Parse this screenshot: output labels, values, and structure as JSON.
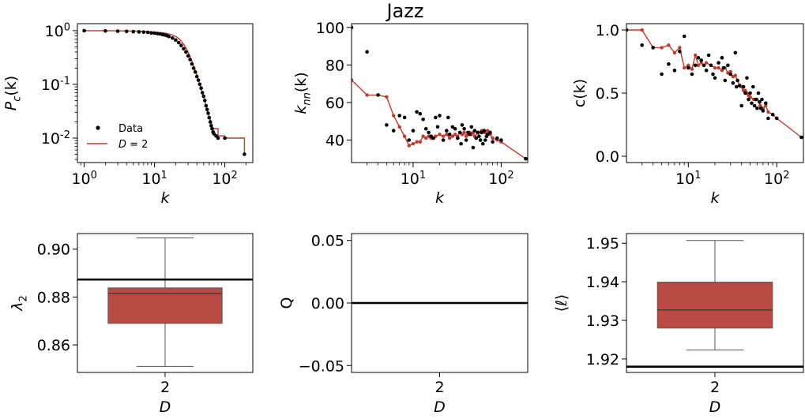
{
  "title": "Jazz",
  "colors": {
    "data": "#000000",
    "model": "#c0392b",
    "box_fill": "#bb4a42",
    "box_edge": "#555555",
    "ref_line": "#000000"
  },
  "chart_data": [
    {
      "id": "pc",
      "type": "line",
      "xscale": "log",
      "yscale": "log",
      "xlabel": "k",
      "ylabel": "P_c(k)",
      "xlim": [
        0.8,
        250
      ],
      "ylim": [
        0.0035,
        1.35
      ],
      "xticks": [
        {
          "v": 1,
          "label": "10^0"
        },
        {
          "v": 10,
          "label": "10^1"
        },
        {
          "v": 100,
          "label": "10^2"
        }
      ],
      "yticks": [
        {
          "v": 1,
          "label": "10^0"
        },
        {
          "v": 0.1,
          "label": "10^-1"
        },
        {
          "v": 0.01,
          "label": "10^-2"
        }
      ],
      "legend": {
        "placement": "lower-left",
        "entries": [
          {
            "label": "Data",
            "kind": "marker"
          },
          {
            "label": "D = 2",
            "kind": "line"
          }
        ]
      },
      "series": [
        {
          "name": "Data",
          "kind": "scatter",
          "x": [
            1,
            2,
            3,
            4,
            5,
            6,
            7,
            8,
            9,
            10,
            11,
            12,
            13,
            14,
            15,
            16,
            18,
            20,
            22,
            24,
            26,
            28,
            30,
            32,
            34,
            36,
            38,
            40,
            42,
            44,
            46,
            48,
            50,
            52,
            54,
            56,
            58,
            60,
            62,
            64,
            66,
            68,
            70,
            75,
            80,
            100,
            190
          ],
          "y": [
            1,
            0.99,
            0.98,
            0.97,
            0.96,
            0.95,
            0.94,
            0.93,
            0.91,
            0.9,
            0.88,
            0.87,
            0.85,
            0.83,
            0.81,
            0.78,
            0.73,
            0.67,
            0.6,
            0.53,
            0.46,
            0.4,
            0.34,
            0.29,
            0.24,
            0.2,
            0.17,
            0.14,
            0.12,
            0.1,
            0.085,
            0.07,
            0.06,
            0.05,
            0.04,
            0.034,
            0.029,
            0.024,
            0.02,
            0.017,
            0.015,
            0.013,
            0.012,
            0.011,
            0.01,
            0.01,
            0.005
          ]
        },
        {
          "name": "D = 2",
          "kind": "line",
          "x": [
            1,
            2,
            4,
            6,
            8,
            10,
            12,
            14,
            16,
            18,
            20,
            22,
            24,
            26,
            28,
            30,
            32,
            34,
            36,
            38,
            40,
            42,
            44,
            46,
            48,
            50,
            52,
            54,
            56,
            58,
            60,
            62,
            65,
            65,
            80,
            80,
            100,
            100,
            190,
            190
          ],
          "y": [
            1,
            1,
            0.99,
            0.98,
            0.96,
            0.94,
            0.92,
            0.9,
            0.87,
            0.83,
            0.78,
            0.72,
            0.64,
            0.56,
            0.48,
            0.4,
            0.33,
            0.27,
            0.22,
            0.18,
            0.15,
            0.12,
            0.1,
            0.085,
            0.07,
            0.058,
            0.048,
            0.04,
            0.034,
            0.029,
            0.025,
            0.022,
            0.02,
            0.015,
            0.015,
            0.011,
            0.011,
            0.01,
            0.01,
            0.005
          ]
        }
      ]
    },
    {
      "id": "knn",
      "type": "line",
      "xscale": "log",
      "yscale": "linear",
      "xlabel": "k",
      "ylabel": "k_nn(k)",
      "xlim": [
        2,
        200
      ],
      "ylim": [
        28,
        102
      ],
      "xticks": [
        {
          "v": 10,
          "label": "10^1"
        },
        {
          "v": 100,
          "label": "10^2"
        }
      ],
      "yticks": [
        {
          "v": 40,
          "label": "40"
        },
        {
          "v": 60,
          "label": "60"
        },
        {
          "v": 80,
          "label": "80"
        },
        {
          "v": 100,
          "label": "100"
        }
      ],
      "series": [
        {
          "name": "Data",
          "kind": "scatter",
          "x": [
            2,
            3,
            4,
            5,
            6,
            7,
            8,
            9,
            10,
            11,
            12,
            13,
            14,
            15,
            16,
            17,
            18,
            19,
            20,
            22,
            24,
            25,
            26,
            28,
            30,
            32,
            34,
            35,
            36,
            38,
            40,
            42,
            44,
            46,
            48,
            50,
            52,
            54,
            56,
            58,
            60,
            62,
            64,
            66,
            68,
            70,
            75,
            80,
            90,
            100,
            190
          ],
          "y": [
            100,
            87,
            64,
            48,
            45,
            53,
            52,
            40,
            45,
            55,
            54,
            51,
            46,
            44,
            42,
            41,
            52,
            47,
            53,
            40,
            45,
            52,
            43,
            47,
            46,
            41,
            44,
            38,
            48,
            46,
            40,
            44,
            43,
            47,
            36,
            45,
            41,
            44,
            42,
            40,
            44,
            38,
            45,
            40,
            42,
            43,
            44,
            39,
            41,
            40,
            30
          ]
        },
        {
          "name": "D = 2",
          "kind": "line",
          "x": [
            2,
            3,
            4,
            5,
            6,
            7,
            8,
            9,
            10,
            11,
            12,
            13,
            14,
            15,
            16,
            18,
            20,
            22,
            24,
            26,
            28,
            30,
            32,
            34,
            36,
            38,
            40,
            42,
            44,
            46,
            48,
            50,
            55,
            60,
            65,
            70,
            75,
            80,
            90,
            100,
            190
          ],
          "y": [
            72,
            64,
            64,
            63,
            53,
            47,
            42,
            37,
            38,
            39,
            39,
            42,
            41,
            42,
            41,
            42,
            43,
            42,
            43,
            41,
            42,
            43,
            42,
            44,
            43,
            44,
            42,
            43,
            44,
            43,
            44,
            42,
            44,
            45,
            44,
            45,
            43,
            41,
            40,
            39,
            30
          ]
        }
      ]
    },
    {
      "id": "ck",
      "type": "line",
      "xscale": "log",
      "yscale": "linear",
      "xlabel": "k",
      "ylabel": "c(k)",
      "xlim": [
        2,
        200
      ],
      "ylim": [
        -0.05,
        1.05
      ],
      "xticks": [
        {
          "v": 10,
          "label": "10^1"
        },
        {
          "v": 100,
          "label": "10^2"
        }
      ],
      "yticks": [
        {
          "v": 0,
          "label": "0.0"
        },
        {
          "v": 0.5,
          "label": "0.5"
        },
        {
          "v": 1,
          "label": "1.0"
        }
      ],
      "series": [
        {
          "name": "Data",
          "kind": "scatter",
          "x": [
            2,
            3,
            4,
            5,
            6,
            7,
            8,
            9,
            10,
            11,
            12,
            13,
            14,
            15,
            16,
            17,
            18,
            19,
            20,
            22,
            24,
            25,
            26,
            28,
            30,
            32,
            34,
            35,
            36,
            38,
            40,
            42,
            44,
            46,
            48,
            50,
            52,
            54,
            56,
            58,
            60,
            62,
            64,
            66,
            68,
            70,
            75,
            80,
            90,
            100,
            190
          ],
          "y": [
            1,
            0.88,
            0.86,
            0.65,
            0.73,
            0.68,
            0.83,
            0.95,
            0.7,
            0.65,
            0.72,
            0.78,
            0.76,
            0.72,
            0.68,
            0.8,
            0.72,
            0.65,
            0.62,
            0.74,
            0.78,
            0.7,
            0.6,
            0.72,
            0.65,
            0.58,
            0.82,
            0.55,
            0.6,
            0.56,
            0.4,
            0.55,
            0.5,
            0.62,
            0.45,
            0.5,
            0.42,
            0.55,
            0.4,
            0.45,
            0.38,
            0.5,
            0.43,
            0.38,
            0.45,
            0.36,
            0.42,
            0.3,
            0.33,
            0.3,
            0.15
          ]
        },
        {
          "name": "D = 2",
          "kind": "line",
          "x": [
            2,
            3,
            4,
            5,
            6,
            7,
            8,
            9,
            10,
            11,
            12,
            13,
            14,
            15,
            16,
            18,
            20,
            22,
            24,
            26,
            28,
            30,
            32,
            34,
            36,
            38,
            40,
            42,
            44,
            46,
            48,
            50,
            55,
            60,
            65,
            70,
            75,
            80,
            90,
            100,
            190
          ],
          "y": [
            1,
            1,
            0.86,
            0.86,
            0.88,
            0.82,
            0.86,
            0.7,
            0.72,
            0.69,
            0.8,
            0.72,
            0.74,
            0.72,
            0.74,
            0.72,
            0.7,
            0.7,
            0.68,
            0.7,
            0.66,
            0.67,
            0.63,
            0.64,
            0.6,
            0.56,
            0.55,
            0.52,
            0.52,
            0.5,
            0.48,
            0.47,
            0.45,
            0.45,
            0.4,
            0.38,
            0.4,
            0.35,
            0.33,
            0.3,
            0.15
          ]
        }
      ]
    },
    {
      "id": "lambda2",
      "type": "box",
      "xlabel": "D",
      "ylabel": "λ_2",
      "categories": [
        "2"
      ],
      "ylim": [
        0.8485,
        0.9065
      ],
      "yticks": [
        {
          "v": 0.86,
          "label": "0.86"
        },
        {
          "v": 0.88,
          "label": "0.88"
        },
        {
          "v": 0.9,
          "label": "0.90"
        }
      ],
      "box": {
        "whisker_low": 0.851,
        "q1": 0.869,
        "median": 0.8815,
        "q3": 0.8838,
        "whisker_high": 0.9047
      },
      "reference": 0.8873
    },
    {
      "id": "Q",
      "type": "box",
      "xlabel": "D",
      "ylabel": "Q",
      "categories": [
        "2"
      ],
      "ylim": [
        -0.0555,
        0.0555
      ],
      "yticks": [
        {
          "v": -0.05,
          "label": "−0.05"
        },
        {
          "v": 0,
          "label": "0.00"
        },
        {
          "v": 0.05,
          "label": "0.05"
        }
      ],
      "box": {
        "whisker_low": 0,
        "q1": 0,
        "median": 0,
        "q3": 0,
        "whisker_high": 0
      },
      "reference": 0
    },
    {
      "id": "ell",
      "type": "box",
      "xlabel": "D",
      "ylabel": "⟨ℓ⟩",
      "categories": [
        "2"
      ],
      "ylim": [
        1.9165,
        1.9525
      ],
      "yticks": [
        {
          "v": 1.92,
          "label": "1.92"
        },
        {
          "v": 1.93,
          "label": "1.93"
        },
        {
          "v": 1.94,
          "label": "1.94"
        },
        {
          "v": 1.95,
          "label": "1.95"
        }
      ],
      "box": {
        "whisker_low": 1.9223,
        "q1": 1.928,
        "median": 1.9327,
        "q3": 1.9399,
        "whisker_high": 1.9507
      },
      "reference": 1.918
    }
  ]
}
